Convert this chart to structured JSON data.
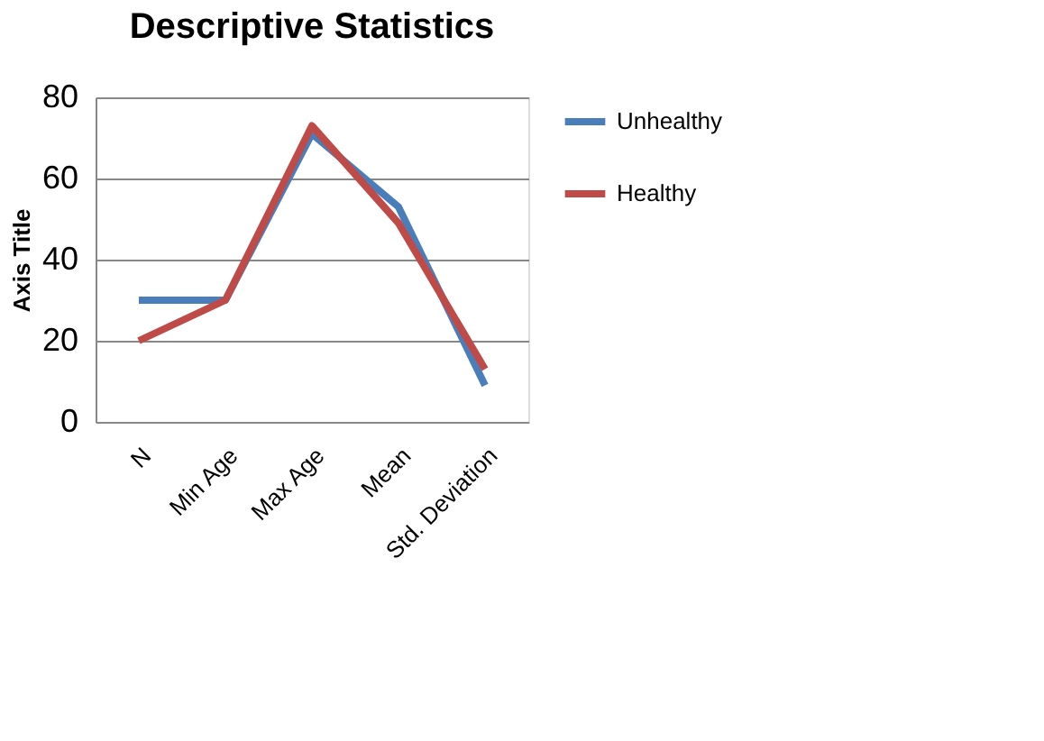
{
  "chart_data": {
    "type": "line",
    "title": "Descriptive Statistics",
    "ylabel": "Axis Title",
    "categories": [
      "N",
      "Min Age",
      "Max Age",
      "Mean",
      "Std. Deviation"
    ],
    "series": [
      {
        "name": "Unhealthy",
        "color": "#4a7ebb",
        "values": [
          30,
          30,
          71,
          53,
          9
        ]
      },
      {
        "name": "Healthy",
        "color": "#be4b48",
        "values": [
          20,
          30,
          73,
          49,
          13
        ]
      }
    ],
    "ylim": [
      0,
      80
    ],
    "yticks": [
      0,
      20,
      40,
      60,
      80
    ],
    "grid": "y",
    "legend": "right",
    "marker": "none",
    "line_style": "solid"
  }
}
